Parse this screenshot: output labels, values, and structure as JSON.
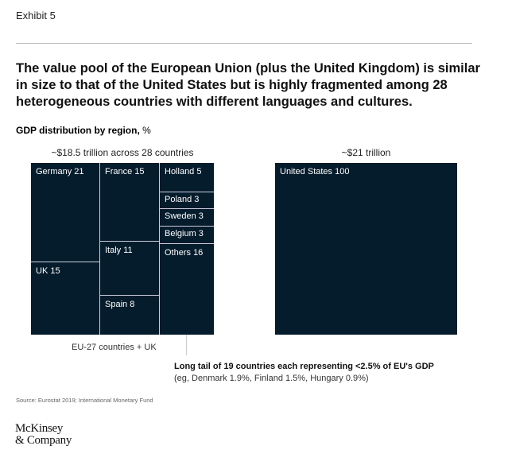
{
  "exhibit": "Exhibit 5",
  "title": "The value pool of the European Union (plus the United Kingdom) is similar in size to that of the United States but is highly fragmented among 28 heterogeneous countries with different languages and cultures.",
  "subtitle_bold": "GDP distribution by region,",
  "subtitle_unit": " %",
  "chart_data": {
    "type": "treemap",
    "title": "GDP distribution by region, %",
    "groups": [
      {
        "caption": "~$18.5 trillion across 28 countries",
        "footer": "EU-27 countries + UK",
        "items": [
          {
            "name": "Germany",
            "value": 21
          },
          {
            "name": "UK",
            "value": 15
          },
          {
            "name": "France",
            "value": 15
          },
          {
            "name": "Italy",
            "value": 11
          },
          {
            "name": "Spain",
            "value": 8
          },
          {
            "name": "Holland",
            "value": 5
          },
          {
            "name": "Poland",
            "value": 3
          },
          {
            "name": "Sweden",
            "value": 3
          },
          {
            "name": "Belgium",
            "value": 3
          },
          {
            "name": "Others",
            "value": 16
          }
        ]
      },
      {
        "caption": "~$21 trillion",
        "items": [
          {
            "name": "United States",
            "value": 100
          }
        ]
      }
    ],
    "color": "#051c2c"
  },
  "annotation": {
    "line1": "Long tail of 19 countries each representing <2.5% of EU's GDP",
    "line2": "(eg, Denmark 1.9%, Finland 1.5%, Hungary 0.9%)"
  },
  "source": "Source: Eurostat 2019; International Monetary Fund",
  "logo": {
    "line1": "McKinsey",
    "line2": "& Company"
  }
}
